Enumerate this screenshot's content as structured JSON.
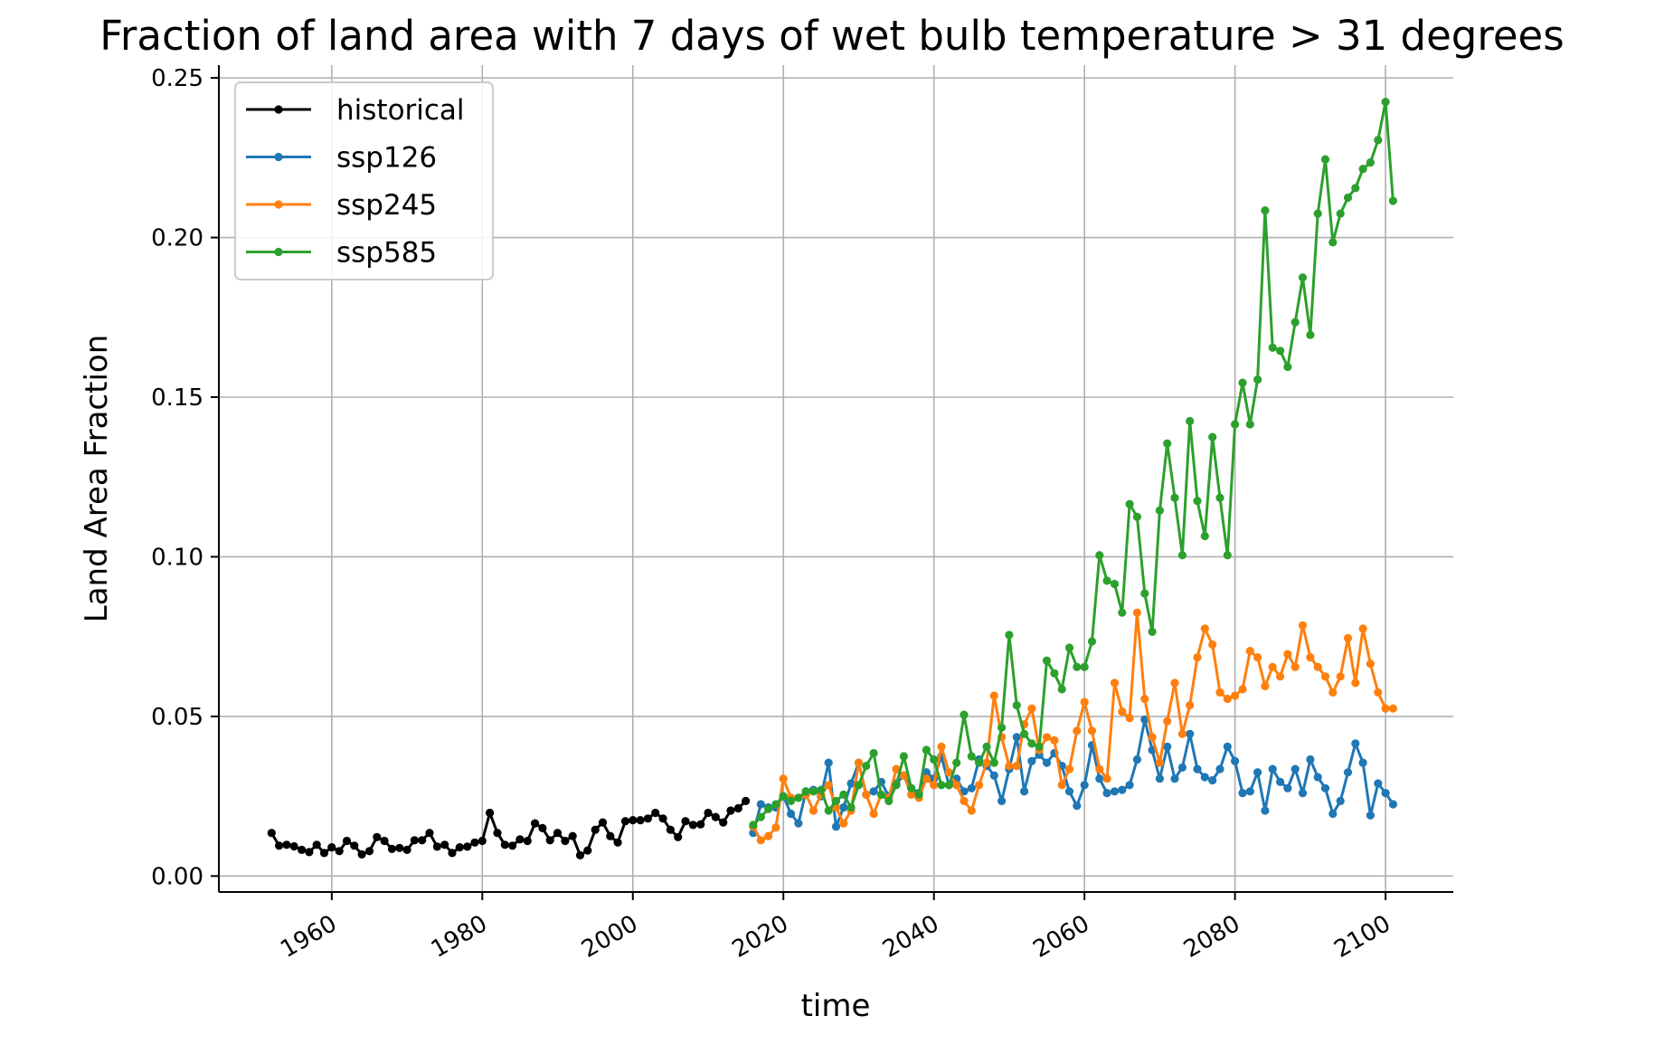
{
  "chart_data": {
    "type": "line",
    "title": "Fraction of land area with 7 days of wet bulb temperature > 31 degrees",
    "xlabel": "time",
    "ylabel": "Land Area Fraction",
    "xlim": [
      1945,
      2109
    ],
    "ylim": [
      -0.005,
      0.254
    ],
    "xticks": [
      1960,
      1980,
      2000,
      2020,
      2040,
      2060,
      2080,
      2100
    ],
    "yticks": [
      "0.00",
      "0.05",
      "0.10",
      "0.15",
      "0.20",
      "0.25"
    ],
    "grid": true,
    "legend_position": "top-left",
    "series": [
      {
        "name": "historical",
        "color": "#000000",
        "x": [
          1952,
          1953,
          1954,
          1955,
          1956,
          1957,
          1958,
          1959,
          1960,
          1961,
          1962,
          1963,
          1964,
          1965,
          1966,
          1967,
          1968,
          1969,
          1970,
          1971,
          1972,
          1973,
          1974,
          1975,
          1976,
          1977,
          1978,
          1979,
          1980,
          1981,
          1982,
          1983,
          1984,
          1985,
          1986,
          1987,
          1988,
          1989,
          1990,
          1991,
          1992,
          1993,
          1994,
          1995,
          1996,
          1997,
          1998,
          1999,
          2000,
          2001,
          2002,
          2003,
          2004,
          2005,
          2006,
          2007,
          2008,
          2009,
          2010,
          2011,
          2012,
          2013,
          2014,
          2015
        ],
        "y": [
          0.0135,
          0.0095,
          0.0098,
          0.0093,
          0.0082,
          0.0075,
          0.0098,
          0.0072,
          0.009,
          0.0078,
          0.011,
          0.0095,
          0.0068,
          0.0078,
          0.0122,
          0.011,
          0.0085,
          0.0088,
          0.0082,
          0.0112,
          0.0112,
          0.0135,
          0.0092,
          0.0098,
          0.0072,
          0.009,
          0.0092,
          0.0105,
          0.011,
          0.0198,
          0.0135,
          0.0098,
          0.0095,
          0.0115,
          0.011,
          0.0165,
          0.015,
          0.0112,
          0.0135,
          0.011,
          0.0125,
          0.0065,
          0.008,
          0.0145,
          0.0168,
          0.0125,
          0.0105,
          0.0172,
          0.0175,
          0.0175,
          0.018,
          0.0198,
          0.018,
          0.0145,
          0.0122,
          0.0172,
          0.016,
          0.0162,
          0.0198,
          0.0185,
          0.0168,
          0.0205,
          0.0212,
          0.0235
        ]
      },
      {
        "name": "ssp126",
        "color": "#1f77b4",
        "x": [
          2016,
          2017,
          2018,
          2019,
          2020,
          2021,
          2022,
          2023,
          2024,
          2025,
          2026,
          2027,
          2028,
          2029,
          2030,
          2031,
          2032,
          2033,
          2034,
          2035,
          2036,
          2037,
          2038,
          2039,
          2040,
          2041,
          2042,
          2043,
          2044,
          2045,
          2046,
          2047,
          2048,
          2049,
          2050,
          2051,
          2052,
          2053,
          2054,
          2055,
          2056,
          2057,
          2058,
          2059,
          2060,
          2061,
          2062,
          2063,
          2064,
          2065,
          2066,
          2067,
          2068,
          2069,
          2070,
          2071,
          2072,
          2073,
          2074,
          2075,
          2076,
          2077,
          2078,
          2079,
          2080,
          2081,
          2082,
          2083,
          2084,
          2085,
          2086,
          2087,
          2088,
          2089,
          2090,
          2091,
          2092,
          2093,
          2094,
          2095,
          2096,
          2097,
          2098,
          2099,
          2100,
          2101
        ],
        "y": [
          0.0135,
          0.0225,
          0.0215,
          0.0215,
          0.025,
          0.0195,
          0.0165,
          0.0265,
          0.027,
          0.025,
          0.0355,
          0.0155,
          0.0215,
          0.029,
          0.0355,
          0.0255,
          0.0265,
          0.0295,
          0.025,
          0.029,
          0.0315,
          0.0275,
          0.026,
          0.0325,
          0.0305,
          0.0375,
          0.0285,
          0.0305,
          0.0265,
          0.0275,
          0.0365,
          0.0345,
          0.0315,
          0.0235,
          0.0335,
          0.0435,
          0.0265,
          0.036,
          0.038,
          0.0355,
          0.0385,
          0.0345,
          0.0265,
          0.022,
          0.0285,
          0.041,
          0.0305,
          0.026,
          0.0265,
          0.027,
          0.0285,
          0.0365,
          0.049,
          0.0395,
          0.0305,
          0.0405,
          0.0305,
          0.034,
          0.0445,
          0.0335,
          0.031,
          0.03,
          0.0335,
          0.0405,
          0.036,
          0.026,
          0.0265,
          0.0325,
          0.0205,
          0.0335,
          0.0295,
          0.0275,
          0.0335,
          0.026,
          0.0365,
          0.031,
          0.0275,
          0.0195,
          0.0235,
          0.0325,
          0.0415,
          0.0355,
          0.019,
          0.029,
          0.026,
          0.0225
        ]
      },
      {
        "name": "ssp245",
        "color": "#ff7f0e",
        "x": [
          2016,
          2017,
          2018,
          2019,
          2020,
          2021,
          2022,
          2023,
          2024,
          2025,
          2026,
          2027,
          2028,
          2029,
          2030,
          2031,
          2032,
          2033,
          2034,
          2035,
          2036,
          2037,
          2038,
          2039,
          2040,
          2041,
          2042,
          2043,
          2044,
          2045,
          2046,
          2047,
          2048,
          2049,
          2050,
          2051,
          2052,
          2053,
          2054,
          2055,
          2056,
          2057,
          2058,
          2059,
          2060,
          2061,
          2062,
          2063,
          2064,
          2065,
          2066,
          2067,
          2068,
          2069,
          2070,
          2071,
          2072,
          2073,
          2074,
          2075,
          2076,
          2077,
          2078,
          2079,
          2080,
          2081,
          2082,
          2083,
          2084,
          2085,
          2086,
          2087,
          2088,
          2089,
          2090,
          2091,
          2092,
          2093,
          2094,
          2095,
          2096,
          2097,
          2098,
          2099,
          2100,
          2101
        ],
        "y": [
          0.0155,
          0.0112,
          0.0125,
          0.0152,
          0.0305,
          0.0245,
          0.0245,
          0.0255,
          0.0205,
          0.0255,
          0.0285,
          0.0215,
          0.0165,
          0.0205,
          0.0355,
          0.0255,
          0.0195,
          0.0255,
          0.0245,
          0.0335,
          0.0315,
          0.0255,
          0.0245,
          0.0305,
          0.0285,
          0.0405,
          0.0325,
          0.0285,
          0.0235,
          0.0205,
          0.0285,
          0.0355,
          0.0565,
          0.0435,
          0.0345,
          0.0345,
          0.0475,
          0.0525,
          0.0395,
          0.0435,
          0.0425,
          0.0285,
          0.0335,
          0.0455,
          0.0545,
          0.0455,
          0.0335,
          0.0305,
          0.0605,
          0.0515,
          0.0495,
          0.0825,
          0.0555,
          0.0435,
          0.0355,
          0.0485,
          0.0605,
          0.0445,
          0.0535,
          0.0685,
          0.0775,
          0.0725,
          0.0575,
          0.0555,
          0.0565,
          0.0585,
          0.0705,
          0.0685,
          0.0595,
          0.0655,
          0.0625,
          0.0695,
          0.0655,
          0.0785,
          0.0685,
          0.0655,
          0.0625,
          0.0575,
          0.0625,
          0.0745,
          0.0605,
          0.0775,
          0.0665,
          0.0575,
          0.0525,
          0.0525
        ]
      },
      {
        "name": "ssp585",
        "color": "#2ca02c",
        "x": [
          2016,
          2017,
          2018,
          2019,
          2020,
          2021,
          2022,
          2023,
          2024,
          2025,
          2026,
          2027,
          2028,
          2029,
          2030,
          2031,
          2032,
          2033,
          2034,
          2035,
          2036,
          2037,
          2038,
          2039,
          2040,
          2041,
          2042,
          2043,
          2044,
          2045,
          2046,
          2047,
          2048,
          2049,
          2050,
          2051,
          2052,
          2053,
          2054,
          2055,
          2056,
          2057,
          2058,
          2059,
          2060,
          2061,
          2062,
          2063,
          2064,
          2065,
          2066,
          2067,
          2068,
          2069,
          2070,
          2071,
          2072,
          2073,
          2074,
          2075,
          2076,
          2077,
          2078,
          2079,
          2080,
          2081,
          2082,
          2083,
          2084,
          2085,
          2086,
          2087,
          2088,
          2089,
          2090,
          2091,
          2092,
          2093,
          2094,
          2095,
          2096,
          2097,
          2098,
          2099,
          2100,
          2101
        ],
        "y": [
          0.016,
          0.0185,
          0.021,
          0.0225,
          0.025,
          0.0235,
          0.0245,
          0.0265,
          0.0265,
          0.027,
          0.0205,
          0.0235,
          0.0255,
          0.0215,
          0.0285,
          0.0345,
          0.0385,
          0.0255,
          0.0235,
          0.0285,
          0.0375,
          0.0275,
          0.0255,
          0.0395,
          0.0365,
          0.0285,
          0.0285,
          0.0355,
          0.0505,
          0.0375,
          0.0355,
          0.0405,
          0.0355,
          0.0465,
          0.0755,
          0.0535,
          0.0445,
          0.0415,
          0.0405,
          0.0675,
          0.0635,
          0.0585,
          0.0715,
          0.0655,
          0.0655,
          0.0735,
          0.1005,
          0.0925,
          0.0915,
          0.0825,
          0.1165,
          0.1125,
          0.0885,
          0.0765,
          0.1145,
          0.1355,
          0.1185,
          0.1005,
          0.1425,
          0.1175,
          0.1065,
          0.1375,
          0.1185,
          0.1005,
          0.1415,
          0.1545,
          0.1415,
          0.1555,
          0.2085,
          0.1655,
          0.1645,
          0.1595,
          0.1735,
          0.1875,
          0.1695,
          0.2075,
          0.2245,
          0.1985,
          0.2075,
          0.2125,
          0.2155,
          0.2215,
          0.2235,
          0.2305,
          0.2425,
          0.2115
        ]
      }
    ]
  }
}
